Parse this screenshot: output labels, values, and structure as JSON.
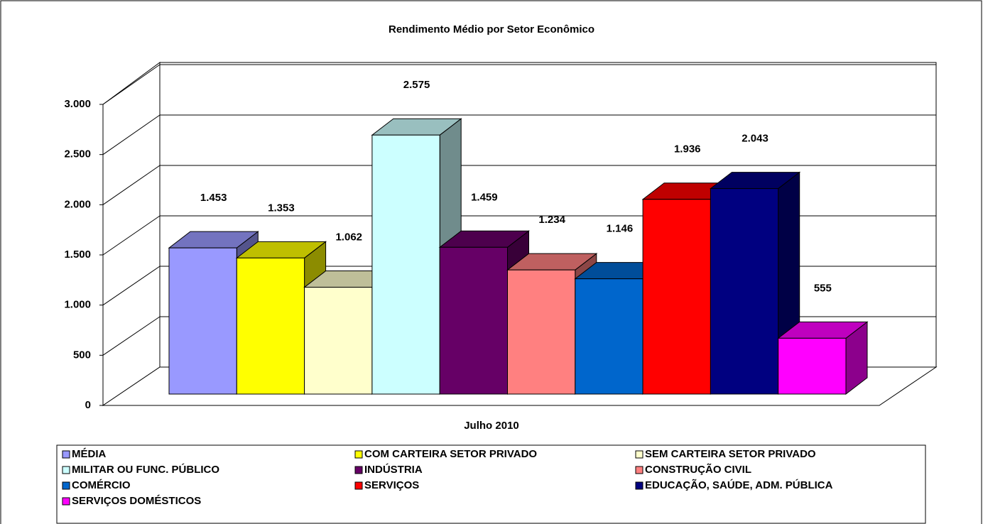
{
  "chart_data": {
    "type": "bar3d",
    "title": "Rendimento Médio por Setor Econômico",
    "categories": [
      "Julho 2010"
    ],
    "series": [
      {
        "name": "MÉDIA",
        "color": "#9999FF",
        "values": [
          1453
        ],
        "value_labels": [
          "1.453"
        ]
      },
      {
        "name": "COM CARTEIRA SETOR PRIVADO",
        "color": "#FFFF00",
        "values": [
          1353
        ],
        "value_labels": [
          "1.353"
        ]
      },
      {
        "name": "SEM CARTEIRA SETOR PRIVADO",
        "color": "#FFFFCC",
        "values": [
          1062
        ],
        "value_labels": [
          "1.062"
        ]
      },
      {
        "name": "MILITAR OU FUNC. PÚBLICO",
        "color": "#CCFFFF",
        "values": [
          2575
        ],
        "value_labels": [
          "2.575"
        ]
      },
      {
        "name": "INDÚSTRIA",
        "color": "#660066",
        "values": [
          1459
        ],
        "value_labels": [
          "1.459"
        ]
      },
      {
        "name": "CONSTRUÇÃO CIVIL",
        "color": "#FF8080",
        "values": [
          1234
        ],
        "value_labels": [
          "1.234"
        ]
      },
      {
        "name": "COMÉRCIO",
        "color": "#0066CC",
        "values": [
          1146
        ],
        "value_labels": [
          "1.146"
        ]
      },
      {
        "name": "SERVIÇOS",
        "color": "#FF0000",
        "values": [
          1936
        ],
        "value_labels": [
          "1.936"
        ]
      },
      {
        "name": "EDUCAÇÃO, SAÚDE, ADM. PÚBLICA",
        "color": "#000080",
        "values": [
          2043
        ],
        "value_labels": [
          "2.043"
        ]
      },
      {
        "name": "SERVIÇOS DOMÉSTICOS",
        "color": "#FF00FF",
        "values": [
          555
        ]
      }
    ],
    "ylim": [
      0,
      3000
    ],
    "yticks": [
      0,
      500,
      {
        "value": 1000,
        "label": "1.000"
      },
      {
        "value": 1500,
        "label": "1.500"
      },
      {
        "value": 2000,
        "label": "2.000"
      },
      {
        "value": 2500,
        "label": "2.500"
      },
      {
        "value": 3000,
        "label": "3.000"
      }
    ],
    "grid": true
  }
}
